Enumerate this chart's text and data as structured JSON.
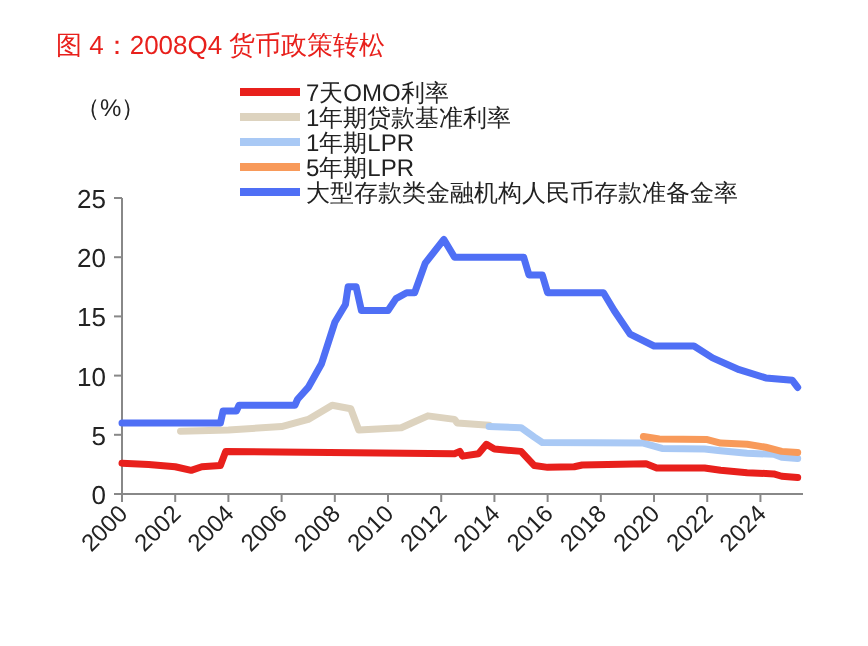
{
  "chart_data": {
    "type": "line",
    "title": "图 4：2008Q4 货币政策转松",
    "ylabel": "（%）",
    "legend": "top",
    "grid": false,
    "marker": "none",
    "line_style": "solid",
    "xlim": [
      2000,
      2025.6
    ],
    "ylim": [
      0,
      25
    ],
    "xticks": [
      2000,
      2002,
      2004,
      2006,
      2008,
      2010,
      2012,
      2014,
      2016,
      2018,
      2020,
      2022,
      2024
    ],
    "yticks": [
      0,
      5,
      10,
      15,
      20,
      25
    ],
    "series": [
      {
        "name": "7天OMO利率",
        "color": "#e8201c",
        "x": [
          2000,
          2001,
          2002,
          2002.6,
          2003,
          2003.7,
          2003.9,
          2012.5,
          2012.7,
          2012.8,
          2013.4,
          2013.7,
          2014,
          2015,
          2015.5,
          2016,
          2017,
          2017.3,
          2019.7,
          2020.1,
          2021.9,
          2022.5,
          2023.5,
          2024.5,
          2024.8,
          2025.4
        ],
        "values": [
          2.6,
          2.5,
          2.3,
          2.0,
          2.3,
          2.4,
          3.6,
          3.4,
          3.6,
          3.2,
          3.4,
          4.2,
          3.8,
          3.6,
          2.4,
          2.25,
          2.3,
          2.45,
          2.55,
          2.2,
          2.2,
          2.0,
          1.8,
          1.7,
          1.5,
          1.4
        ]
      },
      {
        "name": "1年期贷款基准利率",
        "color": "#ddd3bf",
        "x": [
          2002.2,
          2004,
          2006,
          2007,
          2007.9,
          2008.6,
          2008.9,
          2010.5,
          2011,
          2011.5,
          2012.5,
          2012.6,
          2013.8
        ],
        "values": [
          5.3,
          5.4,
          5.7,
          6.3,
          7.5,
          7.2,
          5.4,
          5.6,
          6.1,
          6.6,
          6.3,
          6.0,
          5.8
        ]
      },
      {
        "name": "1年期LPR",
        "color": "#a9c9f5",
        "x": [
          2013.8,
          2015,
          2015.5,
          2015.8,
          2019.6,
          2020,
          2020.3,
          2021.9,
          2022.5,
          2023.5,
          2024.5,
          2024.8,
          2025.4
        ],
        "values": [
          5.7,
          5.6,
          4.8,
          4.35,
          4.3,
          4.05,
          3.85,
          3.8,
          3.65,
          3.45,
          3.35,
          3.1,
          3.0
        ]
      },
      {
        "name": "5年期LPR",
        "color": "#f89a5a",
        "x": [
          2019.6,
          2020.2,
          2022.0,
          2022.5,
          2023.5,
          2024.2,
          2024.8,
          2025.4
        ],
        "values": [
          4.85,
          4.65,
          4.6,
          4.3,
          4.2,
          3.95,
          3.6,
          3.5
        ]
      },
      {
        "name": "大型存款类金融机构人民币存款准备金率",
        "color": "#4f6ff5",
        "x": [
          2000,
          2003.7,
          2003.8,
          2004.3,
          2004.4,
          2006.5,
          2006.6,
          2007,
          2007.5,
          2008,
          2008.4,
          2008.5,
          2008.8,
          2009,
          2010,
          2010.3,
          2010.7,
          2011,
          2011.4,
          2012.1,
          2012.5,
          2015.1,
          2015.3,
          2015.8,
          2016,
          2018.1,
          2018.5,
          2019.1,
          2020,
          2021.5,
          2022.2,
          2023.2,
          2024.2,
          2025.2,
          2025.4
        ],
        "values": [
          6,
          6,
          7,
          7,
          7.5,
          7.5,
          8,
          9,
          11,
          14.5,
          16,
          17.5,
          17.5,
          15.5,
          15.5,
          16.5,
          17,
          17,
          19.5,
          21.5,
          20,
          20,
          18.5,
          18.5,
          17,
          17,
          15.5,
          13.5,
          12.5,
          12.5,
          11.5,
          10.5,
          9.8,
          9.6,
          9.0
        ]
      }
    ]
  }
}
